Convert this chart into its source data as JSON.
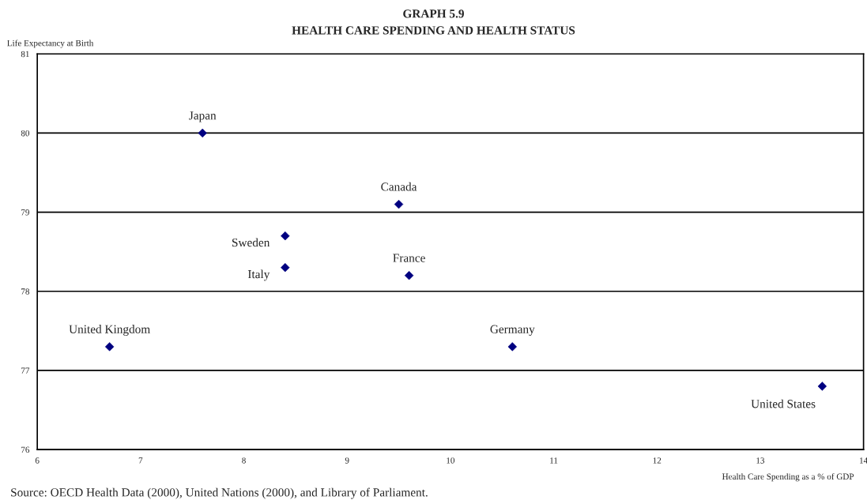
{
  "chart_data": {
    "type": "scatter",
    "title": "GRAPH 5.9",
    "subtitle": "HEALTH CARE SPENDING AND HEALTH STATUS",
    "ylabel": "Life Expectancy at Birth",
    "xlabel": "Health Care Spending as a % of GDP",
    "x": [
      7.6,
      9.5,
      8.4,
      8.4,
      9.6,
      6.7,
      10.6,
      13.6
    ],
    "series": [
      {
        "color": "#000080",
        "values": [
          80.0,
          79.1,
          78.7,
          78.3,
          78.2,
          77.3,
          77.3,
          76.8
        ]
      }
    ],
    "marker": "diamond",
    "grid": "y",
    "legend": false,
    "xlim": [
      6,
      14
    ],
    "xticks": [
      6,
      7,
      8,
      9,
      10,
      11,
      12,
      13,
      14
    ],
    "ylim": [
      76,
      81
    ],
    "yticks": [
      76,
      77,
      78,
      79,
      80,
      81
    ],
    "annotations": [
      {
        "text": "Japan",
        "x": 7.6,
        "y": 80.0
      },
      {
        "text": "Canada",
        "x": 9.5,
        "y": 79.1
      },
      {
        "text": "Sweden",
        "x": 8.4,
        "y": 78.7
      },
      {
        "text": "Italy",
        "x": 8.4,
        "y": 78.3
      },
      {
        "text": "France",
        "x": 9.6,
        "y": 78.2
      },
      {
        "text": "United Kingdom",
        "x": 6.7,
        "y": 77.3
      },
      {
        "text": "Germany",
        "x": 10.6,
        "y": 77.3
      },
      {
        "text": "United States",
        "x": 13.6,
        "y": 76.8
      },
      "Source: OECD Health Data (2000), United Nations (2000), and Library of Parliament."
    ]
  }
}
